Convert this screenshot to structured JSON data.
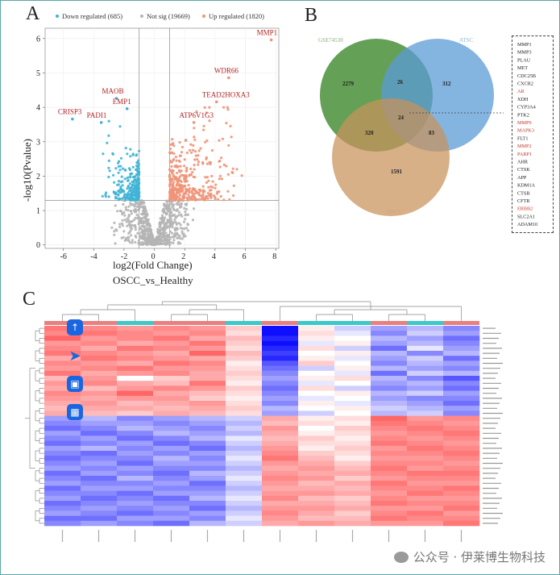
{
  "panels": {
    "a": "A",
    "b": "B",
    "c": "C"
  },
  "volcano": {
    "legend": {
      "down": "Down regulated (685)",
      "ns": "Not sig (19669)",
      "up": "Up regulated (1820)"
    },
    "colors": {
      "down": "#3fb4d6",
      "ns": "#b5b5b5",
      "up": "#f09478",
      "label": "#b22222"
    },
    "ylabel": "-log10(Pvalue)",
    "xlabel": "log2(Fold Change)",
    "subtitle": "OSCC_vs_Healthy",
    "xticks": [
      "-6",
      "-4",
      "-2",
      "0",
      "2",
      "4",
      "6",
      "8"
    ],
    "yticks": [
      "0",
      "1",
      "2",
      "3",
      "4",
      "5",
      "6"
    ],
    "genes": [
      {
        "name": "MMP1",
        "x": 7.7,
        "y": 6.1
      },
      {
        "name": "WDR66",
        "x": 4.9,
        "y": 5.0
      },
      {
        "name": "MAOB",
        "x": -2.5,
        "y": 4.4
      },
      {
        "name": "EMP1",
        "x": -1.8,
        "y": 4.1
      },
      {
        "name": "TEAD2HOXA3",
        "x": 4.1,
        "y": 4.3
      },
      {
        "name": "CRISP3",
        "x": -5.4,
        "y": 3.8
      },
      {
        "name": "PADI1",
        "x": -3.5,
        "y": 3.7
      },
      {
        "name": "ATP6V1G3",
        "x": 2.6,
        "y": 3.7
      }
    ]
  },
  "venn": {
    "sets": [
      "GSE74530",
      "ATSC",
      "OSCC"
    ],
    "counts": {
      "a_only": "2279",
      "b_only": "312",
      "c_only": "1591",
      "ab": "26",
      "ac": "320",
      "bc": "83",
      "abc": "24"
    },
    "colors": {
      "a": "#4a8f3a",
      "b": "#5b9bd5",
      "c": "#c8915a"
    }
  },
  "gene_list": [
    {
      "name": "MMP1",
      "red": false
    },
    {
      "name": "MMP3",
      "red": false
    },
    {
      "name": "PLAU",
      "red": false
    },
    {
      "name": "MET",
      "red": false
    },
    {
      "name": "CDC25B",
      "red": false
    },
    {
      "name": "CXCR2",
      "red": false
    },
    {
      "name": "AR",
      "red": true
    },
    {
      "name": "XDH",
      "red": false
    },
    {
      "name": "CYP3A4",
      "red": false
    },
    {
      "name": "PTK2",
      "red": false
    },
    {
      "name": "MMP9",
      "red": true
    },
    {
      "name": "MAPK3",
      "red": true
    },
    {
      "name": "FLT1",
      "red": false
    },
    {
      "name": "MMP2",
      "red": true
    },
    {
      "name": "PARP1",
      "red": true
    },
    {
      "name": "AHR",
      "red": false
    },
    {
      "name": "CTSK",
      "red": false
    },
    {
      "name": "APP",
      "red": false
    },
    {
      "name": "KDM1A",
      "red": false
    },
    {
      "name": "CTSB",
      "red": false
    },
    {
      "name": "CFTR",
      "red": false
    },
    {
      "name": "ERBB2",
      "red": true
    },
    {
      "name": "SLC2A1",
      "red": false
    },
    {
      "name": "ADAM10",
      "red": false
    }
  ],
  "heatmap": {
    "rows": 40,
    "cols": 12,
    "group_colors": [
      "#e88080",
      "#e88080",
      "#3fc8c8",
      "#e88080",
      "#e88080",
      "#3fc8c8",
      "#e88080",
      "#3fc8c8",
      "#3fc8c8",
      "#e88080",
      "#3fc8c8",
      "#e88080"
    ],
    "values": [
      [
        0.8,
        0.7,
        0.6,
        0.7,
        0.6,
        0.3,
        -1.0,
        0.1,
        -0.2,
        -0.4,
        -0.3,
        -0.5
      ],
      [
        0.7,
        0.8,
        0.7,
        0.6,
        0.7,
        0.2,
        -1.0,
        0.2,
        -0.1,
        -0.5,
        -0.2,
        -0.4
      ],
      [
        0.9,
        0.6,
        0.7,
        0.8,
        0.5,
        0.4,
        -0.9,
        0.1,
        0.0,
        -0.3,
        -0.4,
        -0.6
      ],
      [
        0.6,
        0.7,
        0.5,
        0.6,
        0.8,
        0.3,
        -1.0,
        -0.1,
        0.1,
        -0.4,
        -0.3,
        -0.5
      ],
      [
        0.7,
        0.5,
        0.8,
        0.7,
        0.6,
        0.2,
        -0.9,
        0.2,
        -0.2,
        -0.6,
        -0.1,
        -0.4
      ],
      [
        0.8,
        0.7,
        0.6,
        0.5,
        0.9,
        0.4,
        -0.8,
        0.0,
        0.1,
        -0.3,
        -0.5,
        -0.3
      ],
      [
        0.5,
        0.8,
        0.7,
        0.6,
        0.5,
        0.3,
        -0.9,
        0.1,
        -0.1,
        -0.4,
        -0.2,
        -0.6
      ],
      [
        0.7,
        0.6,
        0.5,
        0.8,
        0.7,
        0.1,
        -0.7,
        0.3,
        0.0,
        -0.5,
        -0.3,
        -0.4
      ],
      [
        0.6,
        0.7,
        0.8,
        0.6,
        0.6,
        0.2,
        -0.6,
        -0.2,
        0.1,
        -0.3,
        -0.4,
        -0.5
      ],
      [
        0.8,
        0.5,
        0.6,
        0.7,
        0.5,
        0.3,
        -0.5,
        0.0,
        -0.1,
        -0.6,
        -0.2,
        -0.3
      ],
      [
        0.4,
        0.6,
        0.0,
        0.3,
        0.5,
        0.2,
        -0.4,
        0.1,
        0.2,
        -0.3,
        -0.5,
        -0.7
      ],
      [
        0.6,
        0.7,
        0.5,
        0.4,
        0.8,
        0.1,
        -0.5,
        -0.1,
        0.0,
        -0.4,
        -0.3,
        -0.5
      ],
      [
        0.5,
        0.4,
        0.6,
        0.7,
        0.6,
        0.3,
        -0.6,
        0.2,
        -0.2,
        -0.5,
        -0.4,
        -0.6
      ],
      [
        0.7,
        0.6,
        0.9,
        0.5,
        0.4,
        0.2,
        -0.5,
        0.0,
        0.1,
        -0.3,
        -0.2,
        -0.4
      ],
      [
        0.6,
        0.5,
        0.6,
        0.6,
        0.3,
        0.1,
        -0.4,
        -0.1,
        0.0,
        -0.4,
        -0.5,
        -0.5
      ],
      [
        0.5,
        0.6,
        0.4,
        0.5,
        0.6,
        0.2,
        -0.5,
        0.1,
        -0.1,
        -0.3,
        -0.4,
        -0.6
      ],
      [
        0.4,
        0.5,
        0.5,
        0.4,
        0.5,
        0.3,
        -0.3,
        0.0,
        0.1,
        -0.2,
        -0.3,
        -0.4
      ],
      [
        0.5,
        0.4,
        0.3,
        0.5,
        0.4,
        0.2,
        -0.4,
        -0.2,
        0.0,
        -0.3,
        -0.2,
        -0.5
      ],
      [
        -0.4,
        -0.3,
        -0.5,
        -0.4,
        -0.3,
        -0.2,
        0.5,
        0.1,
        0.2,
        0.9,
        0.6,
        0.7
      ],
      [
        -0.5,
        -0.4,
        -0.4,
        -0.5,
        -0.4,
        -0.3,
        0.4,
        0.2,
        0.1,
        0.8,
        0.7,
        0.6
      ],
      [
        -0.6,
        -0.5,
        -0.3,
        -0.4,
        -0.5,
        -0.2,
        0.6,
        0.0,
        0.3,
        0.7,
        0.8,
        0.7
      ],
      [
        -0.4,
        -0.6,
        -0.5,
        -0.3,
        -0.4,
        -0.3,
        0.5,
        0.1,
        0.2,
        0.6,
        0.7,
        0.8
      ],
      [
        -0.5,
        -0.4,
        -0.6,
        -0.5,
        -0.3,
        -0.1,
        0.4,
        0.3,
        0.1,
        0.7,
        0.6,
        0.7
      ],
      [
        -0.6,
        -0.5,
        -0.4,
        -0.6,
        -0.5,
        -0.2,
        0.5,
        0.2,
        0.2,
        0.8,
        0.7,
        0.6
      ],
      [
        -0.4,
        -0.3,
        -0.5,
        -0.4,
        -0.6,
        -0.3,
        0.6,
        0.1,
        0.3,
        0.6,
        0.8,
        0.7
      ],
      [
        -0.5,
        -0.6,
        -0.4,
        -0.5,
        -0.4,
        -0.2,
        0.7,
        0.3,
        0.2,
        0.7,
        0.7,
        0.8
      ],
      [
        -0.6,
        -0.5,
        -0.5,
        -0.3,
        -0.5,
        -0.1,
        0.8,
        0.4,
        0.1,
        0.6,
        0.6,
        0.7
      ],
      [
        -0.5,
        -0.4,
        -0.6,
        -0.4,
        -0.4,
        -0.2,
        0.6,
        0.5,
        0.3,
        0.7,
        0.7,
        0.6
      ],
      [
        -0.4,
        -0.5,
        -0.4,
        -0.5,
        -0.5,
        -0.3,
        0.5,
        0.6,
        0.4,
        0.8,
        0.6,
        0.7
      ],
      [
        -0.6,
        -0.4,
        -0.5,
        -0.6,
        -0.3,
        -0.2,
        0.6,
        0.5,
        0.5,
        0.7,
        0.8,
        0.8
      ],
      [
        -0.5,
        -0.6,
        -0.3,
        -0.5,
        -0.4,
        -0.1,
        0.7,
        0.6,
        0.3,
        0.6,
        0.7,
        0.7
      ],
      [
        -0.4,
        -0.5,
        -0.5,
        -0.4,
        -0.6,
        -0.2,
        0.6,
        0.4,
        0.5,
        0.8,
        0.6,
        0.6
      ],
      [
        -0.6,
        -0.4,
        -0.4,
        -0.5,
        -0.5,
        -0.3,
        0.5,
        0.5,
        0.4,
        0.7,
        0.7,
        0.8
      ],
      [
        -0.5,
        -0.5,
        -0.6,
        -0.4,
        -0.4,
        -0.2,
        0.6,
        0.6,
        0.5,
        0.6,
        0.8,
        0.7
      ],
      [
        -0.4,
        -0.6,
        -0.5,
        -0.6,
        -0.3,
        -0.1,
        0.7,
        0.4,
        0.3,
        0.7,
        0.6,
        0.6
      ],
      [
        -0.6,
        -0.5,
        -0.4,
        -0.5,
        -0.5,
        -0.2,
        0.5,
        0.5,
        0.4,
        0.8,
        0.7,
        0.7
      ],
      [
        -0.5,
        -0.4,
        -0.5,
        -0.4,
        -0.6,
        -0.3,
        0.6,
        0.6,
        0.5,
        0.6,
        0.6,
        0.8
      ],
      [
        -0.4,
        -0.5,
        -0.6,
        -0.5,
        -0.4,
        -0.2,
        0.7,
        0.5,
        0.3,
        0.7,
        0.8,
        0.6
      ],
      [
        -0.6,
        -0.6,
        -0.4,
        -0.4,
        -0.5,
        -0.1,
        0.6,
        0.4,
        0.4,
        0.8,
        0.7,
        0.7
      ],
      [
        -0.5,
        -0.4,
        -0.5,
        -0.6,
        -0.3,
        -0.2,
        0.5,
        0.6,
        0.5,
        0.6,
        0.6,
        0.8
      ]
    ]
  },
  "watermark": "公众号 · 伊莱博生物科技"
}
